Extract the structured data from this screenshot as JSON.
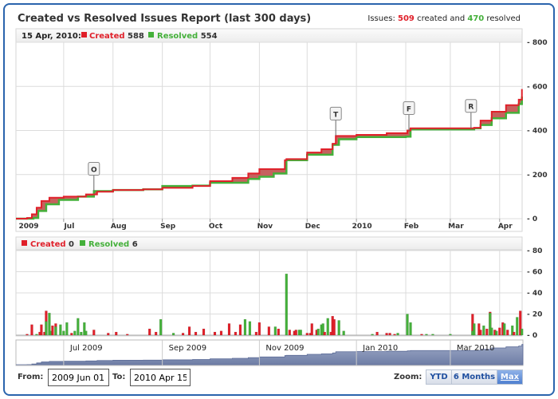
{
  "title": "Created vs Resolved Issues Report (last 300 days)",
  "summary": {
    "prefix": "Issues:",
    "created": "509",
    "mid": "created and",
    "resolved": "470",
    "suffix": "resolved"
  },
  "colors": {
    "created": "#e0202a",
    "resolved": "#44b03a",
    "fill": "#c0504d",
    "navigator": "#8e9bbd",
    "border": "#2a64ad"
  },
  "top_legend": {
    "date": "15 Apr, 2010:",
    "created_label": "Created",
    "created_value": "588",
    "resolved_label": "Resolved",
    "resolved_value": "554"
  },
  "bottom_legend": {
    "created_label": "Created",
    "created_value": "0",
    "resolved_label": "Resolved",
    "resolved_value": "6"
  },
  "navigator": {
    "labels": [
      {
        "date": "2009-07-01",
        "text": "Jul 2009"
      },
      {
        "date": "2009-09-01",
        "text": "Sep 2009"
      },
      {
        "date": "2009-11-01",
        "text": "Nov 2009"
      },
      {
        "date": "2010-01-01",
        "text": "Jan 2010"
      },
      {
        "date": "2010-03-01",
        "text": "Mar 2010"
      }
    ]
  },
  "range": {
    "from_label": "From:",
    "from_value": "2009 Jun 01",
    "to_label": "To:",
    "to_value": "2010 Apr 15"
  },
  "zoom": {
    "label": "Zoom:",
    "buttons": [
      "YTD",
      "6 Months",
      "Max"
    ],
    "selected": "Max"
  },
  "chart_data": [
    {
      "type": "line",
      "title": "",
      "x_range": [
        "2009-06-01",
        "2010-04-15"
      ],
      "ylim": [
        0,
        800
      ],
      "yticks": [
        "0",
        "200",
        "400",
        "600",
        "800"
      ],
      "xticks": [
        {
          "date": "2009-06-01",
          "text": "2009"
        },
        {
          "date": "2009-07-01",
          "text": "Jul"
        },
        {
          "date": "2009-08-01",
          "text": "Aug"
        },
        {
          "date": "2009-09-01",
          "text": "Sep"
        },
        {
          "date": "2009-10-01",
          "text": "Oct"
        },
        {
          "date": "2009-11-01",
          "text": "Nov"
        },
        {
          "date": "2009-12-01",
          "text": "Dec"
        },
        {
          "date": "2010-01-01",
          "text": "2010"
        },
        {
          "date": "2010-02-01",
          "text": "Feb"
        },
        {
          "date": "2010-03-01",
          "text": "Mar"
        },
        {
          "date": "2010-04-01",
          "text": "Apr"
        }
      ],
      "grid": true,
      "series": [
        {
          "name": "Created",
          "points": [
            [
              "2009-06-01",
              0
            ],
            [
              "2009-06-08",
              3
            ],
            [
              "2009-06-11",
              20
            ],
            [
              "2009-06-14",
              50
            ],
            [
              "2009-06-17",
              80
            ],
            [
              "2009-06-22",
              95
            ],
            [
              "2009-07-01",
              100
            ],
            [
              "2009-07-15",
              110
            ],
            [
              "2009-07-22",
              122
            ],
            [
              "2009-08-01",
              130
            ],
            [
              "2009-08-20",
              133
            ],
            [
              "2009-09-01",
              140
            ],
            [
              "2009-09-20",
              148
            ],
            [
              "2009-10-01",
              170
            ],
            [
              "2009-10-15",
              185
            ],
            [
              "2009-10-25",
              205
            ],
            [
              "2009-11-01",
              225
            ],
            [
              "2009-11-17",
              265
            ],
            [
              "2009-11-18",
              270
            ],
            [
              "2009-12-01",
              300
            ],
            [
              "2009-12-10",
              315
            ],
            [
              "2009-12-17",
              340
            ],
            [
              "2009-12-19",
              375
            ],
            [
              "2010-01-01",
              380
            ],
            [
              "2010-01-20",
              388
            ],
            [
              "2010-02-02",
              400
            ],
            [
              "2010-02-04",
              410
            ],
            [
              "2010-03-16",
              412
            ],
            [
              "2010-03-20",
              445
            ],
            [
              "2010-03-27",
              485
            ],
            [
              "2010-04-05",
              515
            ],
            [
              "2010-04-13",
              540
            ],
            [
              "2010-04-15",
              588
            ]
          ]
        },
        {
          "name": "Resolved",
          "points": [
            [
              "2009-06-01",
              0
            ],
            [
              "2009-06-12",
              3
            ],
            [
              "2009-06-15",
              35
            ],
            [
              "2009-06-20",
              65
            ],
            [
              "2009-06-28",
              85
            ],
            [
              "2009-07-10",
              100
            ],
            [
              "2009-07-20",
              125
            ],
            [
              "2009-08-01",
              130
            ],
            [
              "2009-08-20",
              133
            ],
            [
              "2009-09-01",
              148
            ],
            [
              "2009-09-20",
              150
            ],
            [
              "2009-10-01",
              163
            ],
            [
              "2009-10-25",
              180
            ],
            [
              "2009-11-01",
              190
            ],
            [
              "2009-11-10",
              205
            ],
            [
              "2009-11-17",
              205
            ],
            [
              "2009-11-18",
              265
            ],
            [
              "2009-12-01",
              290
            ],
            [
              "2009-12-17",
              335
            ],
            [
              "2009-12-21",
              360
            ],
            [
              "2010-01-01",
              370
            ],
            [
              "2010-02-01",
              372
            ],
            [
              "2010-02-04",
              405
            ],
            [
              "2010-03-16",
              410
            ],
            [
              "2010-03-20",
              425
            ],
            [
              "2010-03-27",
              455
            ],
            [
              "2010-04-05",
              480
            ],
            [
              "2010-04-13",
              520
            ],
            [
              "2010-04-15",
              554
            ]
          ]
        }
      ],
      "flags": [
        {
          "date": "2009-07-20",
          "text": "O"
        },
        {
          "date": "2009-12-19",
          "text": "T"
        },
        {
          "date": "2010-02-03",
          "text": "F"
        },
        {
          "date": "2010-03-14",
          "text": "R"
        }
      ]
    },
    {
      "type": "bar",
      "title": "",
      "ylim": [
        0,
        80
      ],
      "yticks": [
        "0",
        "20",
        "40",
        "60",
        "80"
      ],
      "grid": true,
      "columns": [
        "date",
        "created",
        "resolved"
      ],
      "bars": [
        [
          "2009-06-08",
          1,
          0
        ],
        [
          "2009-06-11",
          10,
          0
        ],
        [
          "2009-06-14",
          0,
          1
        ],
        [
          "2009-06-16",
          3,
          0
        ],
        [
          "2009-06-17",
          10,
          0
        ],
        [
          "2009-06-19",
          3,
          0
        ],
        [
          "2009-06-20",
          23,
          13
        ],
        [
          "2009-06-22",
          0,
          21
        ],
        [
          "2009-06-23",
          0,
          4
        ],
        [
          "2009-06-24",
          9,
          0
        ],
        [
          "2009-06-26",
          11,
          8
        ],
        [
          "2009-06-29",
          0,
          10
        ],
        [
          "2009-07-01",
          0,
          4
        ],
        [
          "2009-07-03",
          0,
          12
        ],
        [
          "2009-07-06",
          2,
          0
        ],
        [
          "2009-07-08",
          0,
          4
        ],
        [
          "2009-07-10",
          0,
          16
        ],
        [
          "2009-07-12",
          0,
          3
        ],
        [
          "2009-07-14",
          0,
          12
        ],
        [
          "2009-07-15",
          0,
          4
        ],
        [
          "2009-07-20",
          5,
          0
        ],
        [
          "2009-07-29",
          2,
          0
        ],
        [
          "2009-08-03",
          3,
          0
        ],
        [
          "2009-08-10",
          1,
          0
        ],
        [
          "2009-08-24",
          6,
          0
        ],
        [
          "2009-08-28",
          3,
          0
        ],
        [
          "2009-08-31",
          0,
          15
        ],
        [
          "2009-09-08",
          0,
          2
        ],
        [
          "2009-09-14",
          2,
          0
        ],
        [
          "2009-09-18",
          8,
          0
        ],
        [
          "2009-09-22",
          3,
          0
        ],
        [
          "2009-09-27",
          6,
          0
        ],
        [
          "2009-10-04",
          3,
          0
        ],
        [
          "2009-10-08",
          4,
          0
        ],
        [
          "2009-10-13",
          11,
          0
        ],
        [
          "2009-10-17",
          3,
          0
        ],
        [
          "2009-10-20",
          10,
          0
        ],
        [
          "2009-10-23",
          0,
          15
        ],
        [
          "2009-10-26",
          0,
          13
        ],
        [
          "2009-10-30",
          3,
          0
        ],
        [
          "2009-11-01",
          12,
          0
        ],
        [
          "2009-11-07",
          8,
          0
        ],
        [
          "2009-11-11",
          0,
          8
        ],
        [
          "2009-11-13",
          6,
          0
        ],
        [
          "2009-11-18",
          0,
          58
        ],
        [
          "2009-11-20",
          5,
          0
        ],
        [
          "2009-11-23",
          4,
          0
        ],
        [
          "2009-11-24",
          5,
          0
        ],
        [
          "2009-11-26",
          0,
          5
        ],
        [
          "2009-11-27",
          0,
          5
        ],
        [
          "2009-12-01",
          2,
          0
        ],
        [
          "2009-12-03",
          2,
          0
        ],
        [
          "2009-12-04",
          11,
          0
        ],
        [
          "2009-12-07",
          5,
          0
        ],
        [
          "2009-12-08",
          0,
          6
        ],
        [
          "2009-12-10",
          0,
          10
        ],
        [
          "2009-12-11",
          0,
          11
        ],
        [
          "2009-12-12",
          3,
          0
        ],
        [
          "2009-12-14",
          0,
          16
        ],
        [
          "2009-12-16",
          3,
          0
        ],
        [
          "2009-12-17",
          18,
          0
        ],
        [
          "2009-12-18",
          15,
          0
        ],
        [
          "2009-12-21",
          0,
          14
        ],
        [
          "2009-12-24",
          0,
          4
        ],
        [
          "2010-01-11",
          0,
          1
        ],
        [
          "2010-01-14",
          3,
          0
        ],
        [
          "2010-01-20",
          2,
          0
        ],
        [
          "2010-01-22",
          2,
          0
        ],
        [
          "2010-01-25",
          1,
          0
        ],
        [
          "2010-01-27",
          0,
          2
        ],
        [
          "2010-02-02",
          0,
          20
        ],
        [
          "2010-02-04",
          0,
          12
        ],
        [
          "2010-02-11",
          1,
          0
        ],
        [
          "2010-02-14",
          0,
          1
        ],
        [
          "2010-02-18",
          0,
          1
        ],
        [
          "2010-03-01",
          0,
          1
        ],
        [
          "2010-03-15",
          20,
          4
        ],
        [
          "2010-03-16",
          0,
          11
        ],
        [
          "2010-03-19",
          11,
          0
        ],
        [
          "2010-03-20",
          5,
          0
        ],
        [
          "2010-03-22",
          0,
          9
        ],
        [
          "2010-03-24",
          6,
          0
        ],
        [
          "2010-03-26",
          22,
          21
        ],
        [
          "2010-03-27",
          0,
          7
        ],
        [
          "2010-03-29",
          5,
          0
        ],
        [
          "2010-03-30",
          0,
          4
        ],
        [
          "2010-04-01",
          7,
          0
        ],
        [
          "2010-04-03",
          12,
          0
        ],
        [
          "2010-04-04",
          0,
          11
        ],
        [
          "2010-04-06",
          5,
          0
        ],
        [
          "2010-04-09",
          0,
          9
        ],
        [
          "2010-04-10",
          3,
          0
        ],
        [
          "2010-04-12",
          0,
          17
        ],
        [
          "2010-04-14",
          23,
          0
        ],
        [
          "2010-04-15",
          0,
          6
        ]
      ]
    }
  ]
}
